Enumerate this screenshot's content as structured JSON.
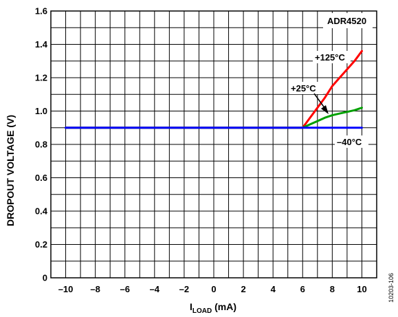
{
  "chart_data": {
    "type": "line",
    "title": "",
    "xlabel": {
      "main": "I",
      "sub": "LOAD",
      "unit": " (mA)"
    },
    "ylabel": "DROPOUT VOLTAGE (V)",
    "xlim": [
      -11,
      11
    ],
    "ylim": [
      0,
      1.6
    ],
    "xticks": [
      "–10",
      "–8",
      "–6",
      "–4",
      "–2",
      "0",
      "2",
      "4",
      "6",
      "8",
      "10"
    ],
    "yticks": [
      "0",
      "0.2",
      "0.4",
      "0.6",
      "0.8",
      "1.0",
      "1.2",
      "1.4",
      "1.6"
    ],
    "grid": true,
    "legend": "none",
    "series": [
      {
        "name": "+125°C",
        "color": "#ff0000",
        "x": [
          -10,
          6,
          6.5,
          7,
          7.5,
          8,
          8.5,
          9,
          9.5,
          10
        ],
        "y": [
          0.9,
          0.9,
          0.96,
          1.02,
          1.08,
          1.15,
          1.2,
          1.25,
          1.3,
          1.36
        ]
      },
      {
        "name": "+25°C",
        "color": "#00a000",
        "x": [
          -10,
          6,
          6.5,
          7,
          7.5,
          8,
          8.5,
          9,
          9.5,
          10
        ],
        "y": [
          0.9,
          0.9,
          0.92,
          0.94,
          0.96,
          0.975,
          0.985,
          0.995,
          1.005,
          1.02
        ]
      },
      {
        "name": "–40°C",
        "color": "#0000ff",
        "x": [
          -10,
          10
        ],
        "y": [
          0.9,
          0.9
        ]
      }
    ],
    "annotations": {
      "device": "ADR4520",
      "t125": "+125°C",
      "t25": "+25°C",
      "tm40": "–40°C"
    },
    "figure_id": "10203-106"
  }
}
